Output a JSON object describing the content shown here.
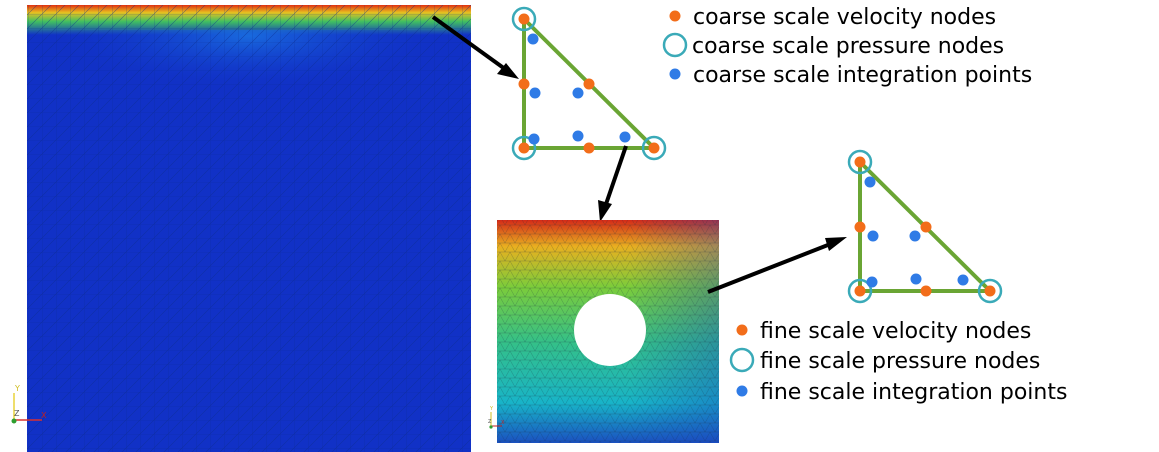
{
  "colors": {
    "velocity_node": "#f26d1a",
    "pressure_ring": "#3aaab8",
    "integration_point": "#2f7be6",
    "element_edge": "#6aa534",
    "arrow": "#000000"
  },
  "icons": [
    "velocity-node-icon",
    "pressure-ring-icon",
    "integration-point-icon",
    "arrow-icon"
  ],
  "coarse_legend": {
    "velocity": "coarse scale velocity nodes",
    "pressure": "coarse scale pressure nodes",
    "integration": "coarse scale integration points"
  },
  "fine_legend": {
    "velocity": "fine scale velocity nodes",
    "pressure": "fine scale pressure nodes",
    "integration": "fine scale integration points"
  },
  "left_axes": {
    "y": "Y",
    "z": "Z",
    "x": "X"
  },
  "fine_axes": {
    "y": "Y",
    "z": "Z",
    "x": "X"
  }
}
